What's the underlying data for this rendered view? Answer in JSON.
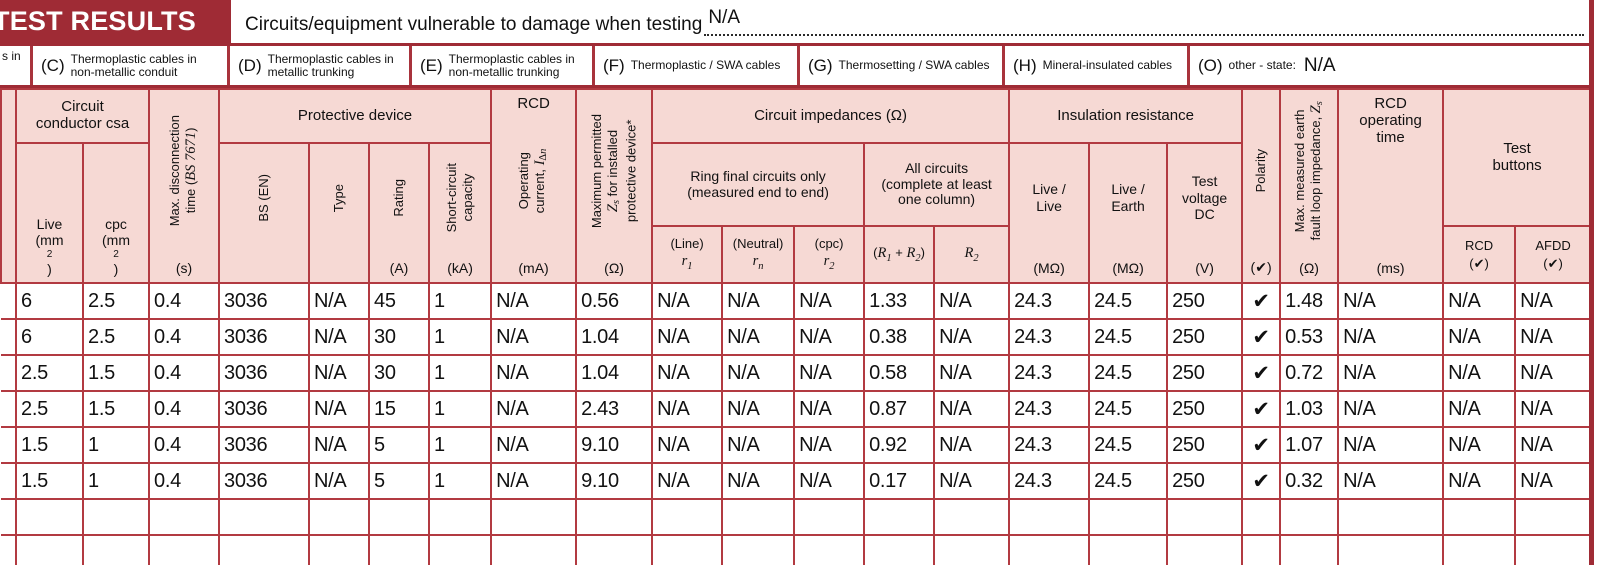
{
  "banner": {
    "title": "TEST RESULTS"
  },
  "top_field": {
    "label": "Circuits/equipment vulnerable to damage when testing",
    "value": "N/A"
  },
  "cable_codes": {
    "truncated_left_fragment": "s in",
    "items": [
      {
        "code": "(C)",
        "label": "Thermoplastic cables in\nnon-metallic conduit"
      },
      {
        "code": "(D)",
        "label": "Thermoplastic cables in\nmetallic trunking"
      },
      {
        "code": "(E)",
        "label": "Thermoplastic cables in\nnon-metallic trunking"
      },
      {
        "code": "(F)",
        "label": "Thermoplastic / SWA cables"
      },
      {
        "code": "(G)",
        "label": "Thermosetting / SWA cables"
      },
      {
        "code": "(H)",
        "label": "Mineral-insulated cables"
      },
      {
        "code": "(O)",
        "label": "other - state:",
        "value": "N/A"
      }
    ]
  },
  "table": {
    "headers": {
      "circuit_conductor_csa": "Circuit\nconductor csa",
      "live": "Live\n(mm^{2})",
      "cpc": "cpc\n(mm^{2})",
      "max_disc": "Max. disconnection\ntime (~{BS 7671})",
      "max_disc_unit": "(s)",
      "protective_device": "Protective device",
      "bs_en": "BS (EN)",
      "type": "Type",
      "rating": "Rating",
      "rating_unit": "(A)",
      "short_circuit": "Short-circuit\ncapacity",
      "short_circuit_unit": "(kA)",
      "rcd": "RCD",
      "rcd_current": "Operating\ncurrent, ~{I_{∆n}}",
      "rcd_current_unit": "(mA)",
      "max_permitted_zs": "Maximum permitted\n~{Z_{s}} for installed\nprotective device*",
      "max_permitted_zs_unit": "(Ω)",
      "circuit_impedances": "Circuit impedances (Ω)",
      "ring_final": "Ring final circuits only\n(measured end to end)",
      "all_circuits": "All circuits\n(complete at least\none column)",
      "r_line": "(Line)\n~{r_{1}}",
      "r_neutral": "(Neutral)\n~{r_{n}}",
      "r_cpc": "(cpc)\n~{r_{2}}",
      "r1_plus_r2": "(~{R_{1}} + ~{R_{2}})",
      "r2": "~{R_{2}}",
      "insulation_resistance": "Insulation resistance",
      "live_live": "Live /\nLive",
      "live_earth": "Live /\nEarth",
      "ins_unit": "(MΩ)",
      "test_voltage": "Test\nvoltage\nDC",
      "test_voltage_unit": "(V)",
      "polarity": "Polarity",
      "check_unit": "(✔)",
      "max_measured_zs": "Max. measured earth\nfault loop impedance, ~{Z_{s}}",
      "max_measured_zs_unit": "(Ω)",
      "rcd_time": "RCD\noperating\ntime",
      "rcd_time_unit": "(ms)",
      "test_buttons": "Test\nbuttons",
      "tb_rcd": "RCD",
      "tb_afdd": "AFDD"
    },
    "rows": [
      [
        "6",
        "2.5",
        "0.4",
        "3036",
        "N/A",
        "45",
        "1",
        "N/A",
        "0.56",
        "N/A",
        "N/A",
        "N/A",
        "1.33",
        "N/A",
        "24.3",
        "24.5",
        "250",
        "✔",
        "1.48",
        "N/A",
        "N/A",
        "N/A"
      ],
      [
        "6",
        "2.5",
        "0.4",
        "3036",
        "N/A",
        "30",
        "1",
        "N/A",
        "1.04",
        "N/A",
        "N/A",
        "N/A",
        "0.38",
        "N/A",
        "24.3",
        "24.5",
        "250",
        "✔",
        "0.53",
        "N/A",
        "N/A",
        "N/A"
      ],
      [
        "2.5",
        "1.5",
        "0.4",
        "3036",
        "N/A",
        "30",
        "1",
        "N/A",
        "1.04",
        "N/A",
        "N/A",
        "N/A",
        "0.58",
        "N/A",
        "24.3",
        "24.5",
        "250",
        "✔",
        "0.72",
        "N/A",
        "N/A",
        "N/A"
      ],
      [
        "2.5",
        "1.5",
        "0.4",
        "3036",
        "N/A",
        "15",
        "1",
        "N/A",
        "2.43",
        "N/A",
        "N/A",
        "N/A",
        "0.87",
        "N/A",
        "24.3",
        "24.5",
        "250",
        "✔",
        "1.03",
        "N/A",
        "N/A",
        "N/A"
      ],
      [
        "1.5",
        "1",
        "0.4",
        "3036",
        "N/A",
        "5",
        "1",
        "N/A",
        "9.10",
        "N/A",
        "N/A",
        "N/A",
        "0.92",
        "N/A",
        "24.3",
        "24.5",
        "250",
        "✔",
        "1.07",
        "N/A",
        "N/A",
        "N/A"
      ],
      [
        "1.5",
        "1",
        "0.4",
        "3036",
        "N/A",
        "5",
        "1",
        "N/A",
        "9.10",
        "N/A",
        "N/A",
        "N/A",
        "0.17",
        "N/A",
        "24.3",
        "24.5",
        "250",
        "✔",
        "0.32",
        "N/A",
        "N/A",
        "N/A"
      ],
      [],
      []
    ]
  }
}
